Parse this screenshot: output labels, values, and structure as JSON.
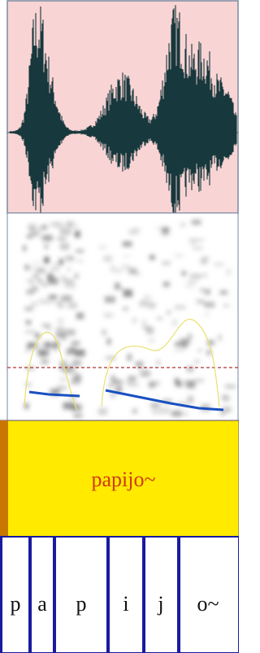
{
  "word_tier": {
    "label": "papijo~"
  },
  "phone_tier": {
    "labels": [
      "p",
      "a",
      "p",
      "i",
      "j",
      "o~"
    ]
  }
}
